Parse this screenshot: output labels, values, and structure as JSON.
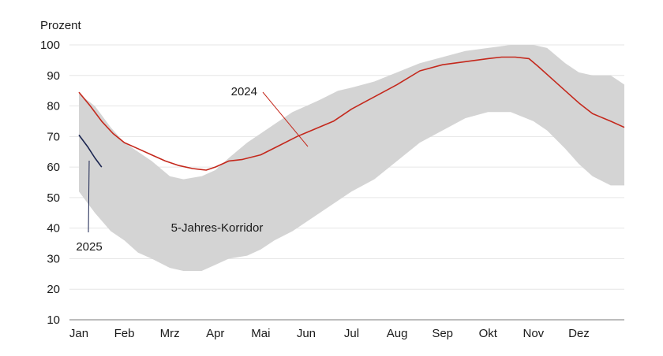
{
  "chart_data": {
    "type": "line",
    "ylabel": "Prozent",
    "ylim": [
      10,
      100
    ],
    "yticks": [
      10,
      20,
      30,
      40,
      50,
      60,
      70,
      80,
      90,
      100
    ],
    "xlim": [
      0,
      12
    ],
    "categories": [
      "Jan",
      "Feb",
      "Mrz",
      "Apr",
      "Mai",
      "Jun",
      "Jul",
      "Aug",
      "Sep",
      "Okt",
      "Nov",
      "Dez"
    ],
    "grid": "horizontal",
    "band": {
      "label": "5-Jahres-Korridor",
      "color": "#d4d4d4",
      "x": [
        0,
        0.35,
        0.7,
        1.0,
        1.3,
        1.6,
        2.0,
        2.3,
        2.7,
        3.0,
        3.3,
        3.7,
        4.0,
        4.3,
        4.7,
        5.0,
        5.3,
        5.7,
        6.0,
        6.5,
        7.0,
        7.5,
        8.0,
        8.5,
        9.0,
        9.5,
        10.0,
        10.3,
        10.7,
        11.0,
        11.3,
        11.7,
        12.0
      ],
      "upper": [
        84,
        80,
        73,
        68,
        65,
        62,
        57,
        56,
        57,
        59,
        63,
        68,
        71,
        74,
        78,
        80,
        82,
        85,
        86,
        88,
        91,
        94,
        96,
        98,
        99,
        100,
        100,
        99,
        94,
        91,
        90,
        90,
        87
      ],
      "lower": [
        52,
        45,
        39,
        36,
        32,
        30,
        27,
        26,
        26,
        28,
        30,
        31,
        33,
        36,
        39,
        42,
        45,
        49,
        52,
        56,
        62,
        68,
        72,
        76,
        78,
        78,
        75,
        72,
        66,
        61,
        57,
        54,
        54
      ]
    },
    "series": [
      {
        "name": "2024",
        "color": "#c4281c",
        "x": [
          0,
          0.25,
          0.5,
          0.75,
          1.0,
          1.3,
          1.6,
          1.9,
          2.2,
          2.5,
          2.8,
          3.0,
          3.3,
          3.6,
          4.0,
          4.4,
          4.8,
          5.2,
          5.6,
          6.0,
          6.5,
          7.0,
          7.5,
          8.0,
          8.5,
          9.0,
          9.3,
          9.6,
          9.9,
          10.1,
          10.4,
          10.7,
          11.0,
          11.3,
          11.7,
          12.0
        ],
        "values": [
          84.5,
          80,
          75,
          71,
          68,
          66,
          64,
          62,
          60.5,
          59.5,
          59,
          60,
          62,
          62.5,
          64,
          67,
          70,
          72.5,
          75,
          79,
          83,
          87,
          91.5,
          93.5,
          94.5,
          95.5,
          96,
          96,
          95.5,
          93,
          89,
          85,
          81,
          77.5,
          75,
          73
        ]
      },
      {
        "name": "2025",
        "color": "#1b2550",
        "x": [
          0,
          0.2,
          0.35,
          0.5
        ],
        "values": [
          70.5,
          66.5,
          63,
          60
        ]
      }
    ],
    "annotations": [
      {
        "text": "2024",
        "color": "#c4281c"
      },
      {
        "text": "2025",
        "color": "#1b2550"
      },
      {
        "text": "5-Jahres-Korridor",
        "color": "#1a1a1a"
      }
    ]
  }
}
